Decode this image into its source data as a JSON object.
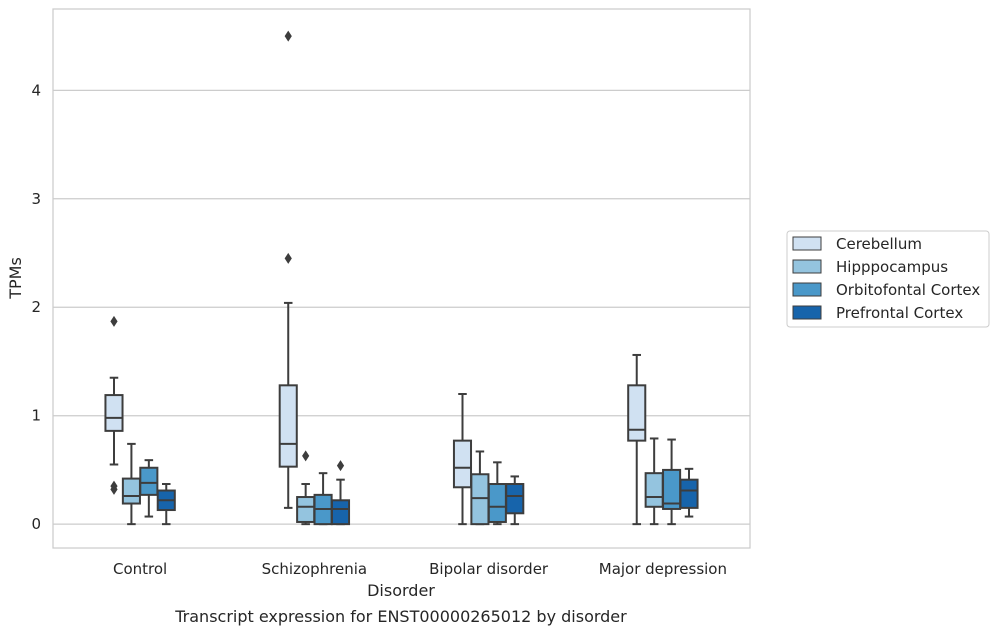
{
  "caption": "Transcript expression for ENST00000265012 by disorder",
  "chart_data": {
    "type": "box",
    "title": "",
    "xlabel": "Disorder",
    "ylabel": "TPMs",
    "ylim": [
      -0.22,
      4.75
    ],
    "yticks": [
      0,
      1,
      2,
      3,
      4
    ],
    "grid": "horizontal",
    "legend_position": "right",
    "categories": [
      "Control",
      "Schizophrenia",
      "Bipolar disorder",
      "Major depression"
    ],
    "series": [
      {
        "name": "Cerebellum",
        "color": "#d0e1f2",
        "boxes": [
          {
            "whislo": 0.55,
            "q1": 0.86,
            "med": 0.98,
            "q3": 1.19,
            "whishi": 1.35,
            "fliers": [
              1.87,
              0.35,
              0.32
            ]
          },
          {
            "whislo": 0.15,
            "q1": 0.53,
            "med": 0.74,
            "q3": 1.28,
            "whishi": 2.04,
            "fliers": [
              4.5,
              2.45
            ]
          },
          {
            "whislo": 0.0,
            "q1": 0.34,
            "med": 0.52,
            "q3": 0.77,
            "whishi": 1.2,
            "fliers": []
          },
          {
            "whislo": 0.0,
            "q1": 0.77,
            "med": 0.87,
            "q3": 1.28,
            "whishi": 1.56,
            "fliers": []
          }
        ]
      },
      {
        "name": "Hipppocampus",
        "color": "#94c4df",
        "boxes": [
          {
            "whislo": 0.0,
            "q1": 0.19,
            "med": 0.26,
            "q3": 0.42,
            "whishi": 0.74,
            "fliers": []
          },
          {
            "whislo": 0.0,
            "q1": 0.02,
            "med": 0.16,
            "q3": 0.25,
            "whishi": 0.37,
            "fliers": [
              0.63
            ]
          },
          {
            "whislo": 0.0,
            "q1": 0.0,
            "med": 0.24,
            "q3": 0.46,
            "whishi": 0.67,
            "fliers": []
          },
          {
            "whislo": 0.0,
            "q1": 0.16,
            "med": 0.25,
            "q3": 0.47,
            "whishi": 0.79,
            "fliers": []
          }
        ]
      },
      {
        "name": "Orbitofontal Cortex",
        "color": "#4a98c9",
        "boxes": [
          {
            "whislo": 0.07,
            "q1": 0.27,
            "med": 0.38,
            "q3": 0.52,
            "whishi": 0.59,
            "fliers": []
          },
          {
            "whislo": 0.0,
            "q1": 0.0,
            "med": 0.14,
            "q3": 0.27,
            "whishi": 0.47,
            "fliers": []
          },
          {
            "whislo": 0.0,
            "q1": 0.02,
            "med": 0.16,
            "q3": 0.37,
            "whishi": 0.57,
            "fliers": []
          },
          {
            "whislo": 0.0,
            "q1": 0.14,
            "med": 0.19,
            "q3": 0.5,
            "whishi": 0.78,
            "fliers": []
          }
        ]
      },
      {
        "name": "Prefrontal Cortex",
        "color": "#1764ab",
        "boxes": [
          {
            "whislo": 0.0,
            "q1": 0.13,
            "med": 0.22,
            "q3": 0.31,
            "whishi": 0.37,
            "fliers": []
          },
          {
            "whislo": 0.0,
            "q1": 0.0,
            "med": 0.14,
            "q3": 0.22,
            "whishi": 0.41,
            "fliers": [
              0.54
            ]
          },
          {
            "whislo": 0.0,
            "q1": 0.1,
            "med": 0.26,
            "q3": 0.37,
            "whishi": 0.44,
            "fliers": []
          },
          {
            "whislo": 0.07,
            "q1": 0.15,
            "med": 0.31,
            "q3": 0.41,
            "whishi": 0.51,
            "fliers": []
          }
        ]
      }
    ]
  }
}
